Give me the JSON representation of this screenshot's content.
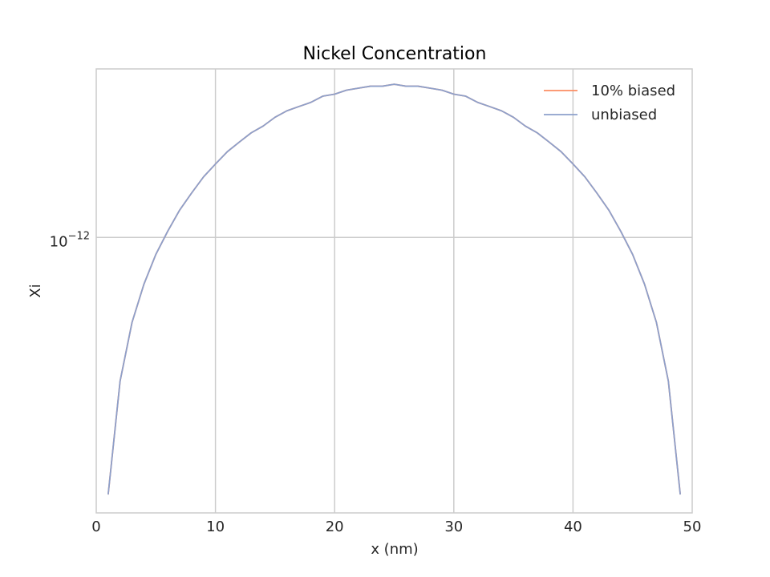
{
  "chart_data": {
    "type": "line",
    "title": "Nickel Concentration",
    "xlabel": "x (nm)",
    "ylabel": "Xi",
    "yscale": "log",
    "xlim": [
      0,
      50
    ],
    "ylim": [
      4.2e-13,
      1.7e-12
    ],
    "x_ticks": [
      0,
      10,
      20,
      30,
      40,
      50
    ],
    "x_tick_labels": [
      "0",
      "10",
      "20",
      "30",
      "40",
      "50"
    ],
    "y_ticks": [
      1e-12
    ],
    "y_tick_label_base": "10",
    "y_tick_label_exponent": "−12",
    "grid": true,
    "legend_position": "top-right",
    "x": [
      1,
      2,
      3,
      4,
      5,
      6,
      7,
      8,
      9,
      10,
      11,
      12,
      13,
      14,
      15,
      16,
      17,
      18,
      19,
      20,
      21,
      22,
      23,
      24,
      25,
      26,
      27,
      28,
      29,
      30,
      31,
      32,
      33,
      34,
      35,
      36,
      37,
      38,
      39,
      40,
      41,
      42,
      43,
      44,
      45,
      46,
      47,
      48,
      49
    ],
    "series": [
      {
        "name": "10% biased",
        "color": "#fc8d62",
        "values": [
          4.45e-13,
          6.36e-13,
          7.65e-13,
          8.63e-13,
          9.48e-13,
          1.02e-12,
          1.09e-12,
          1.15e-12,
          1.21e-12,
          1.26e-12,
          1.31e-12,
          1.35e-12,
          1.39e-12,
          1.42e-12,
          1.46e-12,
          1.49e-12,
          1.51e-12,
          1.53e-12,
          1.56e-12,
          1.57e-12,
          1.59e-12,
          1.6e-12,
          1.61e-12,
          1.61e-12,
          1.62e-12,
          1.61e-12,
          1.61e-12,
          1.6e-12,
          1.59e-12,
          1.57e-12,
          1.56e-12,
          1.53e-12,
          1.51e-12,
          1.49e-12,
          1.46e-12,
          1.42e-12,
          1.39e-12,
          1.35e-12,
          1.31e-12,
          1.26e-12,
          1.21e-12,
          1.15e-12,
          1.09e-12,
          1.02e-12,
          9.48e-13,
          8.63e-13,
          7.65e-13,
          6.36e-13,
          4.45e-13
        ]
      },
      {
        "name": "unbiased",
        "color": "#8da0cb",
        "values": [
          4.45e-13,
          6.36e-13,
          7.65e-13,
          8.63e-13,
          9.48e-13,
          1.02e-12,
          1.09e-12,
          1.15e-12,
          1.21e-12,
          1.26e-12,
          1.31e-12,
          1.35e-12,
          1.39e-12,
          1.42e-12,
          1.46e-12,
          1.49e-12,
          1.51e-12,
          1.53e-12,
          1.56e-12,
          1.57e-12,
          1.59e-12,
          1.6e-12,
          1.61e-12,
          1.61e-12,
          1.62e-12,
          1.61e-12,
          1.61e-12,
          1.6e-12,
          1.59e-12,
          1.57e-12,
          1.56e-12,
          1.53e-12,
          1.51e-12,
          1.49e-12,
          1.46e-12,
          1.42e-12,
          1.39e-12,
          1.35e-12,
          1.31e-12,
          1.26e-12,
          1.21e-12,
          1.15e-12,
          1.09e-12,
          1.02e-12,
          9.48e-13,
          8.63e-13,
          7.65e-13,
          6.36e-13,
          4.45e-13
        ]
      }
    ]
  }
}
